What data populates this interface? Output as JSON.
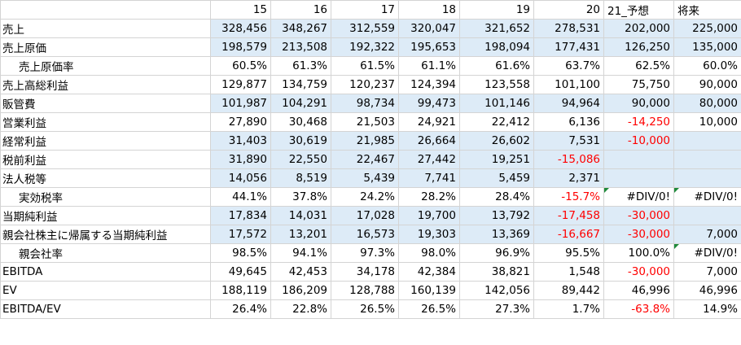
{
  "headers": [
    "",
    "15",
    "16",
    "17",
    "18",
    "19",
    "20",
    "21_予想",
    "将来"
  ],
  "rows": [
    {
      "label": "売上",
      "indent": false,
      "shaded": true,
      "cells": [
        "328,456",
        "348,267",
        "312,559",
        "320,047",
        "321,652",
        "278,531",
        "202,000",
        "225,000"
      ]
    },
    {
      "label": "売上原価",
      "indent": false,
      "shaded": true,
      "cells": [
        "198,579",
        "213,508",
        "192,322",
        "195,653",
        "198,094",
        "177,431",
        "126,250",
        "135,000"
      ]
    },
    {
      "label": "売上原価率",
      "indent": true,
      "shaded": false,
      "cells": [
        "60.5%",
        "61.3%",
        "61.5%",
        "61.1%",
        "61.6%",
        "63.7%",
        "62.5%",
        "60.0%"
      ]
    },
    {
      "label": "売上高総利益",
      "indent": false,
      "shaded": false,
      "cells": [
        "129,877",
        "134,759",
        "120,237",
        "124,394",
        "123,558",
        "101,100",
        "75,750",
        "90,000"
      ]
    },
    {
      "label": "販管費",
      "indent": false,
      "shaded": true,
      "cells": [
        "101,987",
        "104,291",
        "98,734",
        "99,473",
        "101,146",
        "94,964",
        "90,000",
        "80,000"
      ]
    },
    {
      "label": "営業利益",
      "indent": false,
      "shaded": false,
      "cells": [
        "27,890",
        "30,468",
        "21,503",
        "24,921",
        "22,412",
        "6,136",
        "-14,250",
        "10,000"
      ]
    },
    {
      "label": "経常利益",
      "indent": false,
      "shaded": true,
      "cells": [
        "31,403",
        "30,619",
        "21,985",
        "26,664",
        "26,602",
        "7,531",
        "-10,000",
        ""
      ]
    },
    {
      "label": "税前利益",
      "indent": false,
      "shaded": true,
      "cells": [
        "31,890",
        "22,550",
        "22,467",
        "27,442",
        "19,251",
        "-15,086",
        "",
        ""
      ]
    },
    {
      "label": "法人税等",
      "indent": false,
      "shaded": true,
      "cells": [
        "14,056",
        "8,519",
        "5,439",
        "7,741",
        "5,459",
        "2,371",
        "",
        ""
      ]
    },
    {
      "label": "実効税率",
      "indent": true,
      "shaded": false,
      "cells": [
        "44.1%",
        "37.8%",
        "24.2%",
        "28.2%",
        "28.4%",
        "-15.7%",
        "#DIV/0!",
        "#DIV/0!"
      ]
    },
    {
      "label": "当期純利益",
      "indent": false,
      "shaded": true,
      "cells": [
        "17,834",
        "14,031",
        "17,028",
        "19,700",
        "13,792",
        "-17,458",
        "-30,000",
        ""
      ]
    },
    {
      "label": "親会社株主に帰属する当期純利益",
      "indent": false,
      "shaded": true,
      "cells": [
        "17,572",
        "13,201",
        "16,573",
        "19,303",
        "13,369",
        "-16,667",
        "-30,000",
        "7,000"
      ]
    },
    {
      "label": "親会社率",
      "indent": true,
      "shaded": false,
      "cells": [
        "98.5%",
        "94.1%",
        "97.3%",
        "98.0%",
        "96.9%",
        "95.5%",
        "100.0%",
        "#DIV/0!"
      ]
    },
    {
      "label": "EBITDA",
      "indent": false,
      "shaded": false,
      "cells": [
        "49,645",
        "42,453",
        "34,178",
        "42,384",
        "38,821",
        "1,548",
        "-30,000",
        "7,000"
      ]
    },
    {
      "label": "EV",
      "indent": false,
      "shaded": false,
      "cells": [
        "188,119",
        "186,209",
        "128,788",
        "160,139",
        "142,056",
        "89,442",
        "46,996",
        "46,996"
      ]
    },
    {
      "label": "EBITDA/EV",
      "indent": false,
      "shaded": false,
      "cells": [
        "26.4%",
        "22.8%",
        "26.5%",
        "26.5%",
        "27.3%",
        "1.7%",
        "-63.8%",
        "14.9%"
      ]
    }
  ],
  "styles": {
    "shade_color": "#ddebf7",
    "negative_color": "#ff0000",
    "flag_color": "#1e8a3a"
  }
}
